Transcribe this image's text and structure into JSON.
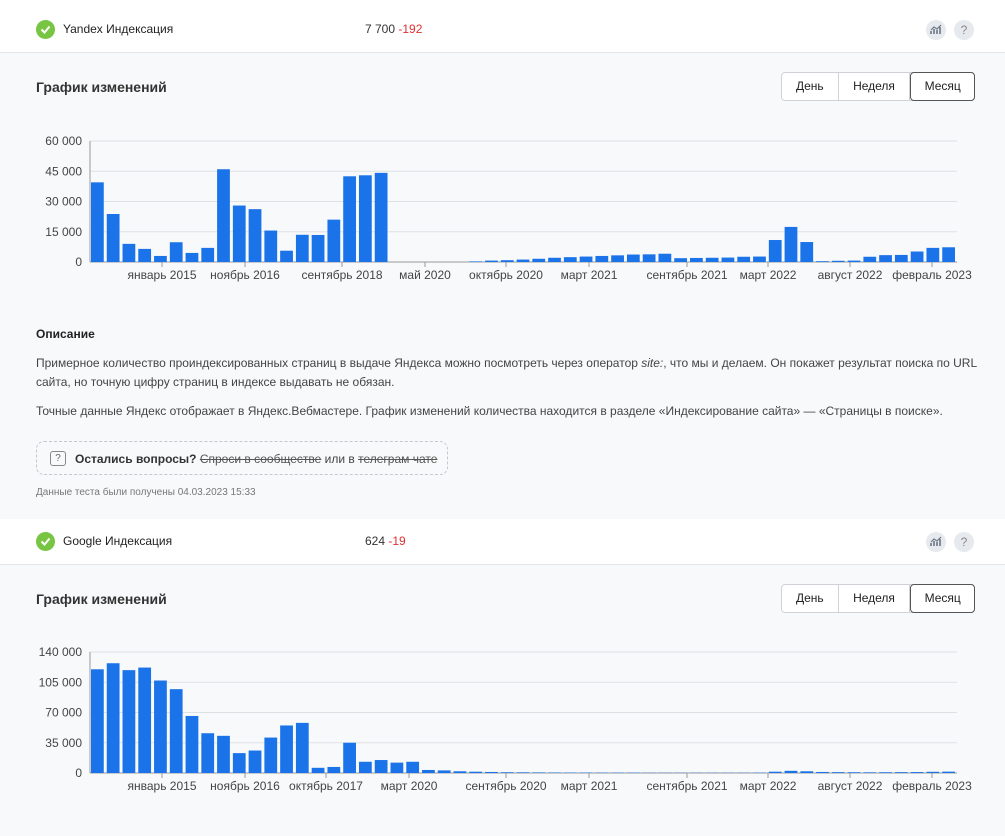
{
  "yandex": {
    "label": "Yandex Индексация",
    "value": "7 700",
    "delta": "-192",
    "section_title": "График изменений",
    "periods": [
      "День",
      "Неделя",
      "Месяц"
    ],
    "active_period": "Месяц"
  },
  "description": {
    "heading": "Описание",
    "p1_before": "Примерное количество проиндексированных страниц в выдаче Яндекса можно посмотреть через оператор ",
    "p1_italic": "site:",
    "p1_after": ", что мы и делаем. Он покажет результат поиска по URL сайта, но точную цифру страниц в индексе выдавать не обязан.",
    "p2": "Точные данные Яндекс отображает в Яндекс.Вебмастере. График изменений количества находится в разделе «Индексирование сайта» — «Страницы в поиске».",
    "question_bold": "Остались вопросы?",
    "question_link1": "Спроси в сообществе",
    "question_mid": " или в ",
    "question_link2": "телеграм чате",
    "timestamp": "Данные теста были получены 04.03.2023 15:33"
  },
  "google": {
    "label": "Google Индексация",
    "value": "624",
    "delta": "-19",
    "section_title": "График изменений",
    "periods": [
      "День",
      "Неделя",
      "Месяц"
    ],
    "active_period": "Месяц"
  },
  "colors": {
    "bar": "#1a73e8",
    "accent_green": "#78c543",
    "negative": "#e03030"
  },
  "icons": [
    "check-icon",
    "chart-icon",
    "help-icon",
    "question-icon"
  ],
  "chart_data": [
    {
      "type": "bar",
      "ylim": [
        0,
        60000
      ],
      "yticks": [
        "0",
        "15 000",
        "30 000",
        "45 000",
        "60 000"
      ],
      "tick_labels": [
        "январь 2015",
        "ноябрь 2016",
        "сентябрь 2018",
        "май 2020",
        "октябрь 2020",
        "март 2021",
        "сентябрь 2021",
        "март 2022",
        "август 2022",
        "февраль 2023"
      ],
      "values": [
        39500,
        23800,
        9000,
        6500,
        3000,
        9800,
        4500,
        7000,
        46000,
        28000,
        26200,
        15600,
        5600,
        13500,
        13400,
        21000,
        42500,
        43000,
        44200,
        0,
        0,
        0,
        0,
        0,
        300,
        700,
        900,
        1200,
        1600,
        2100,
        2400,
        2700,
        3000,
        3300,
        3700,
        3800,
        4100,
        1900,
        2000,
        2100,
        2200,
        2600,
        2700,
        10900,
        17400,
        9900,
        400,
        600,
        700,
        2600,
        3400,
        3500,
        5200,
        7000,
        7300
      ]
    },
    {
      "type": "bar",
      "ylim": [
        0,
        140000
      ],
      "yticks": [
        "0",
        "35 000",
        "70 000",
        "105 000",
        "140 000"
      ],
      "tick_labels": [
        "январь 2015",
        "ноябрь 2016",
        "октябрь 2017",
        "март 2020",
        "сентябрь 2020",
        "март 2021",
        "сентябрь 2021",
        "март 2022",
        "август 2022",
        "февраль 2023"
      ],
      "values": [
        120000,
        127000,
        119000,
        122000,
        107000,
        97000,
        66000,
        46000,
        43000,
        23000,
        26000,
        41000,
        55000,
        58000,
        6000,
        7000,
        35000,
        13000,
        15000,
        12000,
        13000,
        3500,
        3000,
        2000,
        1500,
        1200,
        900,
        800,
        700,
        600,
        500,
        500,
        400,
        400,
        400,
        300,
        300,
        300,
        300,
        300,
        300,
        300,
        400,
        1500,
        2500,
        2000,
        1200,
        1000,
        900,
        800,
        900,
        1000,
        1100,
        1400,
        1600
      ]
    }
  ]
}
